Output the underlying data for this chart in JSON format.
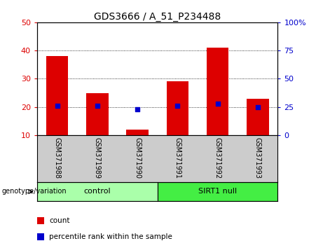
{
  "title": "GDS3666 / A_51_P234488",
  "categories": [
    "GSM371988",
    "GSM371989",
    "GSM371990",
    "GSM371991",
    "GSM371992",
    "GSM371993"
  ],
  "bar_values": [
    38,
    25,
    12,
    29,
    41,
    23
  ],
  "dot_values": [
    26,
    26,
    23,
    26,
    28,
    25
  ],
  "bar_color": "#dd0000",
  "dot_color": "#0000cc",
  "ylim_left": [
    10,
    50
  ],
  "ylim_right": [
    0,
    100
  ],
  "yticks_left": [
    10,
    20,
    30,
    40,
    50
  ],
  "yticks_right": [
    0,
    25,
    50,
    75,
    100
  ],
  "ytick_labels_right": [
    "0",
    "25",
    "50",
    "75",
    "100%"
  ],
  "group_labels": [
    "control",
    "SIRT1 null"
  ],
  "group_colors": [
    "#aaffaa",
    "#44ee44"
  ],
  "legend_items": [
    "count",
    "percentile rank within the sample"
  ],
  "legend_colors": [
    "#dd0000",
    "#0000cc"
  ],
  "genotype_label": "genotype/variation",
  "bar_bottom": 10,
  "tick_area_color": "#cccccc",
  "fig_width": 4.61,
  "fig_height": 3.54
}
